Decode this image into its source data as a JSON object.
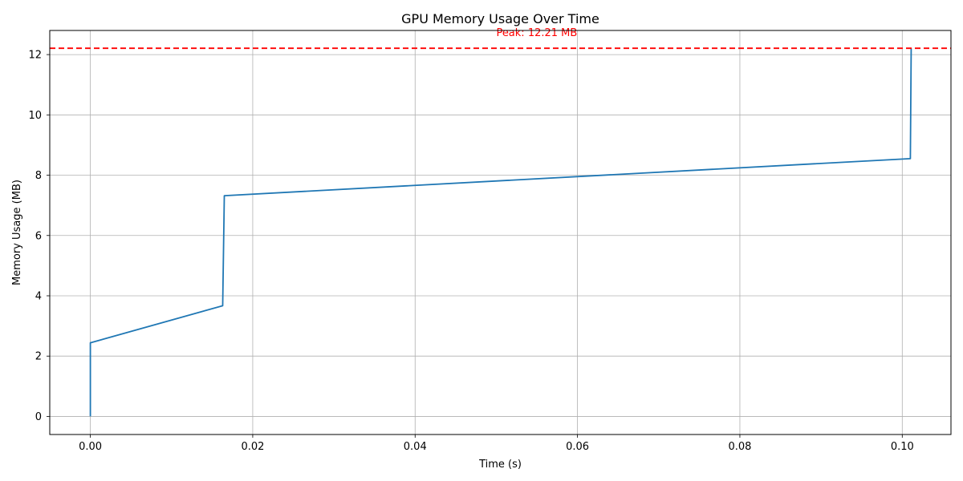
{
  "chart_data": {
    "type": "line",
    "title": "GPU Memory Usage Over Time",
    "xlabel": "Time (s)",
    "ylabel": "Memory Usage (MB)",
    "xlim": [
      -0.005,
      0.106
    ],
    "ylim": [
      -0.6,
      12.8
    ],
    "xticks": [
      0.0,
      0.02,
      0.04,
      0.06,
      0.08,
      0.1
    ],
    "xtick_labels": [
      "0.00",
      "0.02",
      "0.04",
      "0.06",
      "0.08",
      "0.10"
    ],
    "yticks": [
      0,
      2,
      4,
      6,
      8,
      10,
      12
    ],
    "ytick_labels": [
      "0",
      "2",
      "4",
      "6",
      "8",
      "10",
      "12"
    ],
    "grid": true,
    "series": [
      {
        "color": "#1f77b4",
        "x": [
          0.0,
          0.0,
          0.0163,
          0.0165,
          0.101,
          0.1011
        ],
        "y": [
          0.0,
          2.44,
          3.67,
          7.32,
          8.55,
          12.21
        ]
      }
    ],
    "annotations": [
      {
        "type": "hline",
        "y": 12.21,
        "color": "#ff0000",
        "style": "dashed",
        "label": "Peak: 12.21 MB"
      }
    ]
  }
}
